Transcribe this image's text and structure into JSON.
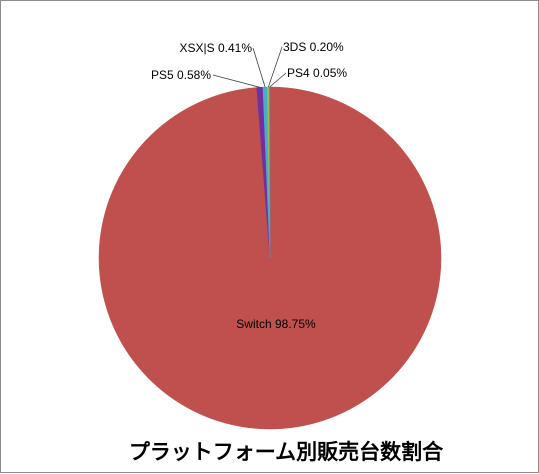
{
  "chart_data": {
    "type": "pie",
    "title": "プラットフォーム別販売台数割合",
    "slices": [
      {
        "label": "Switch",
        "value": 98.75,
        "text": "Switch 98.75%",
        "color": "#c0504d"
      },
      {
        "label": "PS5",
        "value": 0.58,
        "text": "PS5 0.58%",
        "color": "#7030a0"
      },
      {
        "label": "XSX|S",
        "value": 0.41,
        "text": "XSX|S 0.41%",
        "color": "#4bacc6"
      },
      {
        "label": "3DS",
        "value": 0.2,
        "text": "3DS 0.20%",
        "color": "#9bbb59"
      },
      {
        "label": "PS4",
        "value": 0.05,
        "text": "PS4 0.05%",
        "color": "#4f81bd"
      }
    ],
    "legend": "none",
    "data_labels": "category and percentage"
  }
}
